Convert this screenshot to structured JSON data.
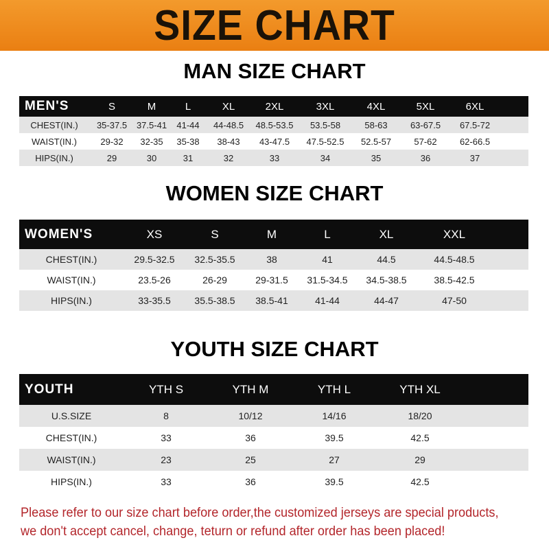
{
  "banner_title": "SIZE CHART",
  "men": {
    "title": "MAN SIZE CHART",
    "header": [
      "MEN'S",
      "S",
      "M",
      "L",
      "XL",
      "2XL",
      "3XL",
      "4XL",
      "5XL",
      "6XL"
    ],
    "rows": [
      [
        "CHEST(IN.)",
        "35-37.5",
        "37.5-41",
        "41-44",
        "44-48.5",
        "48.5-53.5",
        "53.5-58",
        "58-63",
        "63-67.5",
        "67.5-72"
      ],
      [
        "WAIST(IN.)",
        "29-32",
        "32-35",
        "35-38",
        "38-43",
        "43-47.5",
        "47.5-52.5",
        "52.5-57",
        "57-62",
        "62-66.5"
      ],
      [
        "HIPS(IN.)",
        "29",
        "30",
        "31",
        "32",
        "33",
        "34",
        "35",
        "36",
        "37"
      ]
    ]
  },
  "women": {
    "title": "WOMEN SIZE CHART",
    "header": [
      "WOMEN'S",
      "XS",
      "S",
      "M",
      "L",
      "XL",
      "XXL"
    ],
    "rows": [
      [
        "CHEST(IN.)",
        "29.5-32.5",
        "32.5-35.5",
        "38",
        "41",
        "44.5",
        "44.5-48.5"
      ],
      [
        "WAIST(IN.)",
        "23.5-26",
        "26-29",
        "29-31.5",
        "31.5-34.5",
        "34.5-38.5",
        "38.5-42.5"
      ],
      [
        "HIPS(IN.)",
        "33-35.5",
        "35.5-38.5",
        "38.5-41",
        "41-44",
        "44-47",
        "47-50"
      ]
    ]
  },
  "youth": {
    "title": "YOUTH SIZE CHART",
    "header": [
      "YOUTH",
      "YTH S",
      "YTH M",
      "YTH L",
      "YTH XL"
    ],
    "rows": [
      [
        "U.S.SIZE",
        "8",
        "10/12",
        "14/16",
        "18/20"
      ],
      [
        "CHEST(IN.)",
        "33",
        "36",
        "39.5",
        "42.5"
      ],
      [
        "WAIST(IN.)",
        "23",
        "25",
        "27",
        "29"
      ],
      [
        "HIPS(IN.)",
        "33",
        "36",
        "39.5",
        "42.5"
      ]
    ]
  },
  "notice": {
    "line1": "Please refer to our size chart before order,the customized jerseys are special products,",
    "line2": "we don't accept cancel, change, teturn or refund after order has been placed!"
  },
  "colors": {
    "banner": "#ee8a1e",
    "header_row": "#0d0d0d",
    "stripe": "#e4e4e4",
    "notice": "#b3262b"
  }
}
